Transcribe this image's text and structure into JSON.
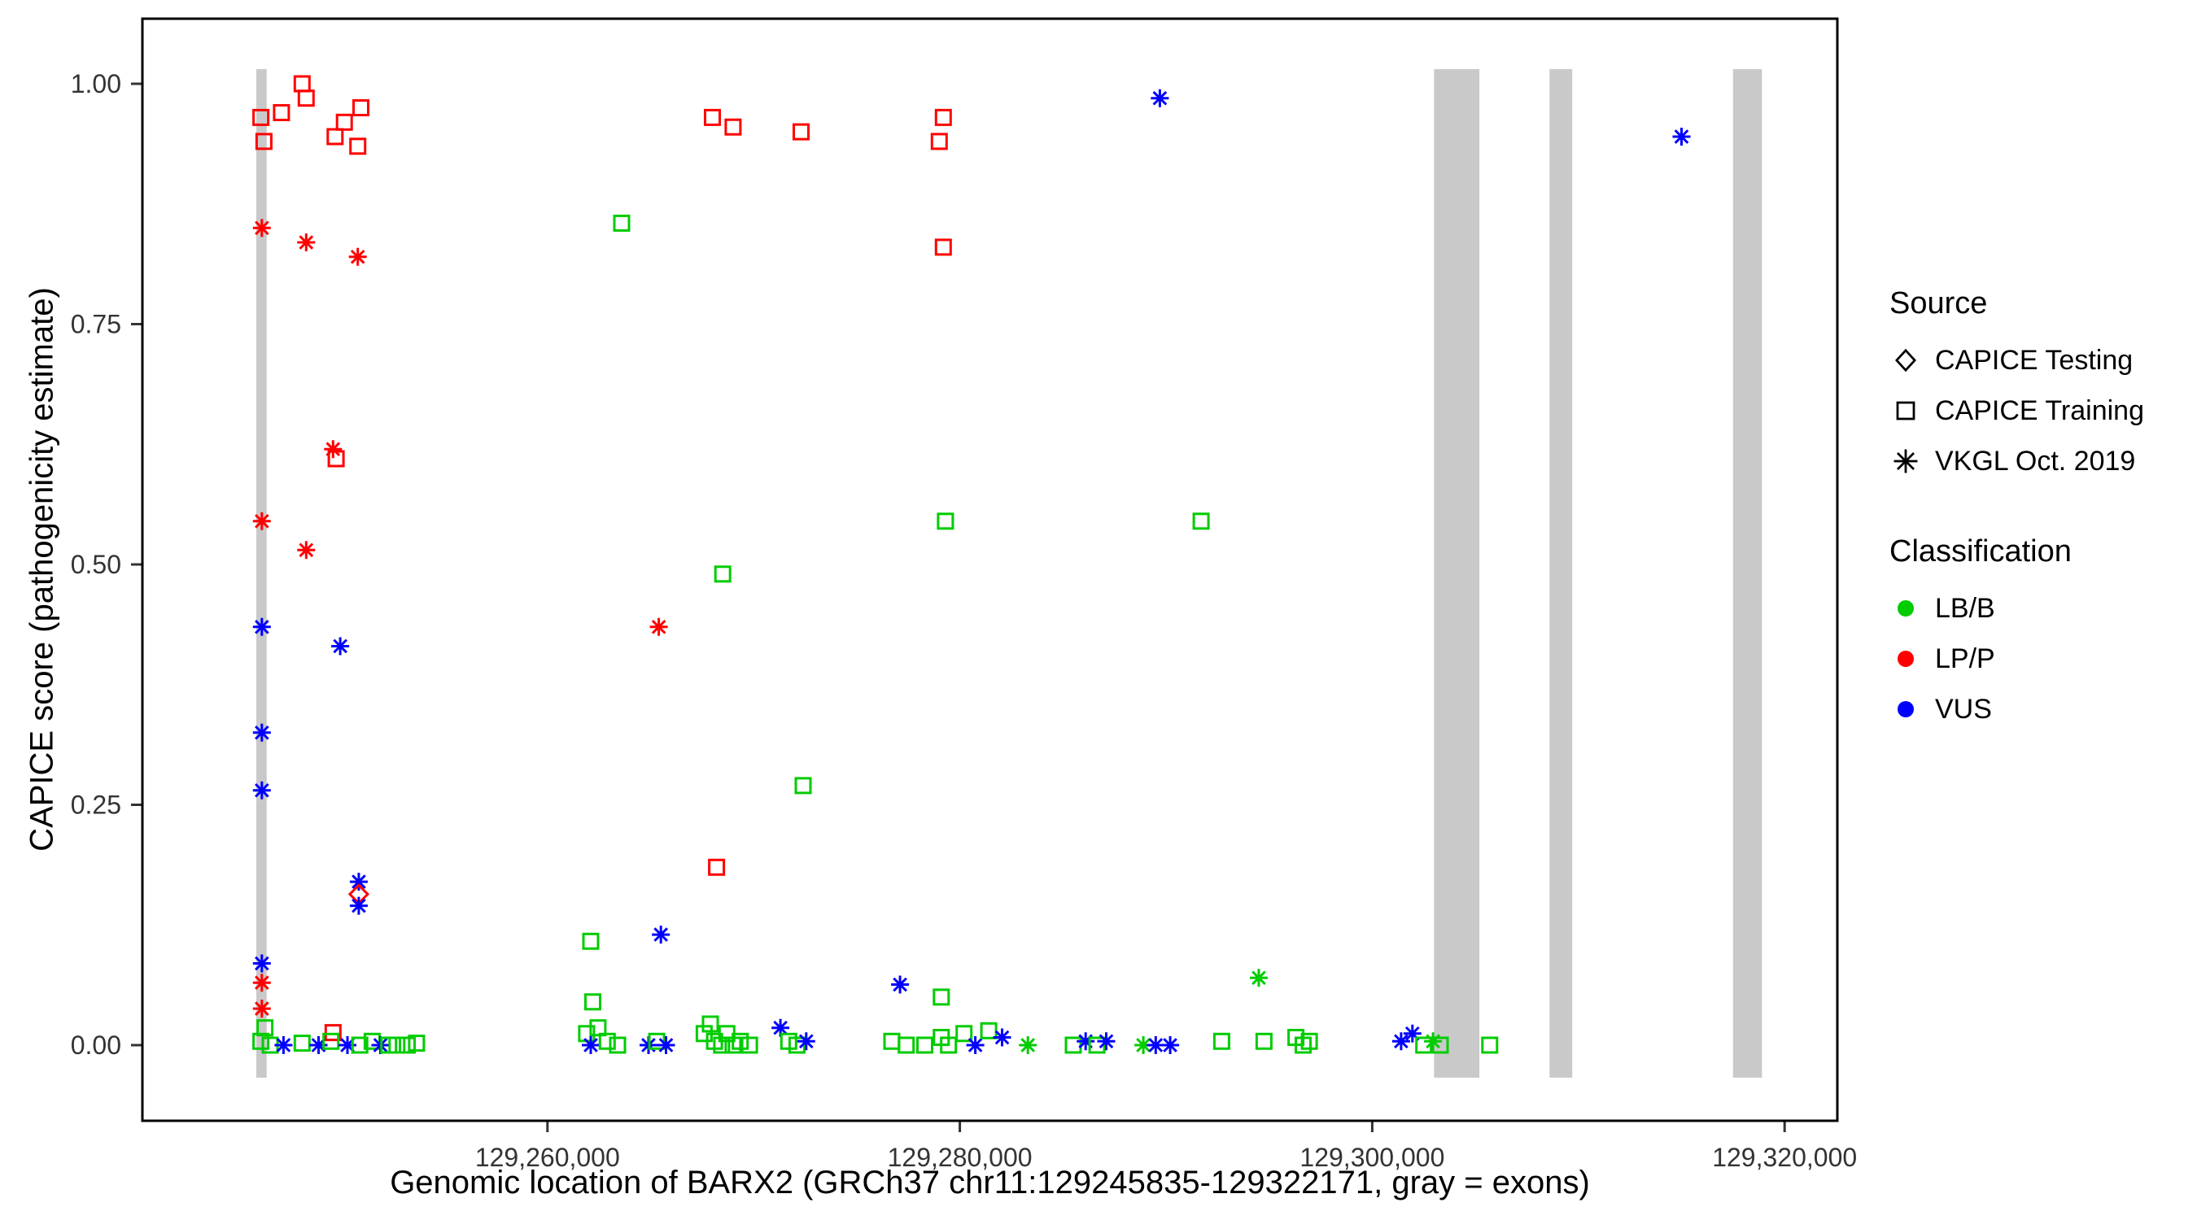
{
  "colors": {
    "LB": "#00cc00",
    "LP": "#ff0000",
    "VUS": "#0000ff",
    "exon": "#c9c9c9",
    "axis_text": "#333333",
    "panel_border": "#000000"
  },
  "chart_data": {
    "type": "scatter",
    "title": "",
    "xlabel": "Genomic location of BARX2 (GRCh37 chr11:129245835-129322171, gray = exons)",
    "ylabel": "CAPICE score (pathogenicity estimate)",
    "xlim": [
      129240355,
      129322557
    ],
    "ylim": [
      0,
      1
    ],
    "grid": "off",
    "legend_position": "right",
    "x_ticks": [
      {
        "value": 129260000,
        "label": "129,260,000"
      },
      {
        "value": 129280000,
        "label": "129,280,000"
      },
      {
        "value": 129300000,
        "label": "129,300,000"
      },
      {
        "value": 129320000,
        "label": "129,320,000"
      }
    ],
    "y_ticks": [
      {
        "value": 0.0,
        "label": "0.00"
      },
      {
        "value": 0.25,
        "label": "0.25"
      },
      {
        "value": 0.5,
        "label": "0.50"
      },
      {
        "value": 0.75,
        "label": "0.75"
      },
      {
        "value": 1.0,
        "label": "1.00"
      }
    ],
    "exons": [
      [
        129245880,
        129246380
      ],
      [
        129303000,
        129305200
      ],
      [
        129308600,
        129309700
      ],
      [
        129317500,
        129318900
      ]
    ],
    "legend": {
      "source": {
        "title": "Source",
        "items": [
          {
            "label": "CAPICE Testing",
            "marker": "diamond"
          },
          {
            "label": "CAPICE Training",
            "marker": "square"
          },
          {
            "label": "VKGL Oct. 2019",
            "marker": "asterisk"
          }
        ]
      },
      "classification": {
        "title": "Classification",
        "items": [
          {
            "label": "LB/B",
            "class": "LB"
          },
          {
            "label": "LP/P",
            "class": "LP"
          },
          {
            "label": "VUS",
            "class": "VUS"
          }
        ]
      }
    },
    "points": [
      [
        129246100,
        0.965,
        "training",
        "LP"
      ],
      [
        129246250,
        0.94,
        "training",
        "LP"
      ],
      [
        129247100,
        0.97,
        "training",
        "LP"
      ],
      [
        129248100,
        1.0,
        "training",
        "LP"
      ],
      [
        129248300,
        0.985,
        "training",
        "LP"
      ],
      [
        129249700,
        0.945,
        "training",
        "LP"
      ],
      [
        129250150,
        0.96,
        "training",
        "LP"
      ],
      [
        129250950,
        0.975,
        "training",
        "LP"
      ],
      [
        129250800,
        0.935,
        "training",
        "LP"
      ],
      [
        129246150,
        0.85,
        "vkgl",
        "LP"
      ],
      [
        129248300,
        0.835,
        "vkgl",
        "LP"
      ],
      [
        129250800,
        0.82,
        "vkgl",
        "LP"
      ],
      [
        129249600,
        0.62,
        "vkgl",
        "LP"
      ],
      [
        129249750,
        0.61,
        "training",
        "LP"
      ],
      [
        129246150,
        0.545,
        "vkgl",
        "LP"
      ],
      [
        129248300,
        0.515,
        "vkgl",
        "LP"
      ],
      [
        129246150,
        0.435,
        "vkgl",
        "VUS"
      ],
      [
        129249950,
        0.415,
        "vkgl",
        "VUS"
      ],
      [
        129246150,
        0.325,
        "vkgl",
        "VUS"
      ],
      [
        129246150,
        0.265,
        "vkgl",
        "VUS"
      ],
      [
        129250850,
        0.17,
        "vkgl",
        "VUS"
      ],
      [
        129250850,
        0.157,
        "testing",
        "LP"
      ],
      [
        129250850,
        0.145,
        "vkgl",
        "VUS"
      ],
      [
        129246150,
        0.085,
        "vkgl",
        "VUS"
      ],
      [
        129246150,
        0.065,
        "vkgl",
        "LP"
      ],
      [
        129246150,
        0.038,
        "vkgl",
        "LP"
      ],
      [
        129246300,
        0.018,
        "training",
        "LB"
      ],
      [
        129249600,
        0.013,
        "training",
        "LP"
      ],
      [
        129246100,
        0.004,
        "training",
        "LB"
      ],
      [
        129246550,
        0,
        "training",
        "LB"
      ],
      [
        129247200,
        0,
        "vkgl",
        "VUS"
      ],
      [
        129248100,
        0.002,
        "training",
        "LB"
      ],
      [
        129248900,
        0,
        "vkgl",
        "VUS"
      ],
      [
        129249500,
        0.004,
        "training",
        "LB"
      ],
      [
        129250300,
        0,
        "vkgl",
        "VUS"
      ],
      [
        129250900,
        0,
        "training",
        "LB"
      ],
      [
        129251500,
        0.004,
        "training",
        "LB"
      ],
      [
        129251900,
        0,
        "vkgl",
        "VUS"
      ],
      [
        129252300,
        0,
        "training",
        "LB"
      ],
      [
        129252700,
        0,
        "training",
        "LB"
      ],
      [
        129253200,
        0,
        "training",
        "LB"
      ],
      [
        129253650,
        0.002,
        "training",
        "LB"
      ],
      [
        129263600,
        0.855,
        "training",
        "LB"
      ],
      [
        129268000,
        0.965,
        "training",
        "LP"
      ],
      [
        129269000,
        0.955,
        "training",
        "LP"
      ],
      [
        129272300,
        0.95,
        "training",
        "LP"
      ],
      [
        129268500,
        0.49,
        "training",
        "LB"
      ],
      [
        129265400,
        0.435,
        "vkgl",
        "LP"
      ],
      [
        129272400,
        0.27,
        "training",
        "LB"
      ],
      [
        129268200,
        0.185,
        "training",
        "LP"
      ],
      [
        129262100,
        0.108,
        "training",
        "LB"
      ],
      [
        129265500,
        0.115,
        "vkgl",
        "VUS"
      ],
      [
        129262200,
        0.045,
        "training",
        "LB"
      ],
      [
        129261900,
        0.012,
        "training",
        "LB"
      ],
      [
        129262450,
        0.018,
        "training",
        "LB"
      ],
      [
        129262100,
        0,
        "vkgl",
        "VUS"
      ],
      [
        129262900,
        0.004,
        "training",
        "LB"
      ],
      [
        129263400,
        0,
        "training",
        "LB"
      ],
      [
        129264900,
        0,
        "vkgl",
        "VUS"
      ],
      [
        129265300,
        0.004,
        "training",
        "LB"
      ],
      [
        129265750,
        0,
        "vkgl",
        "VUS"
      ],
      [
        129267600,
        0.012,
        "training",
        "LB"
      ],
      [
        129267900,
        0.022,
        "training",
        "LB"
      ],
      [
        129268100,
        0.004,
        "training",
        "LB"
      ],
      [
        129268450,
        0,
        "training",
        "LB"
      ],
      [
        129268700,
        0.012,
        "training",
        "LB"
      ],
      [
        129269000,
        0,
        "training",
        "LB"
      ],
      [
        129269350,
        0.004,
        "training",
        "LB"
      ],
      [
        129269800,
        0,
        "training",
        "LB"
      ],
      [
        129271300,
        0.018,
        "vkgl",
        "VUS"
      ],
      [
        129271700,
        0.004,
        "training",
        "LB"
      ],
      [
        129272100,
        0,
        "training",
        "LB"
      ],
      [
        129272550,
        0.004,
        "vkgl",
        "VUS"
      ],
      [
        129279200,
        0.965,
        "training",
        "LP"
      ],
      [
        129279000,
        0.94,
        "training",
        "LP"
      ],
      [
        129279200,
        0.83,
        "training",
        "LP"
      ],
      [
        129279300,
        0.545,
        "training",
        "LB"
      ],
      [
        129277100,
        0.063,
        "vkgl",
        "VUS"
      ],
      [
        129279100,
        0.05,
        "training",
        "LB"
      ],
      [
        129276700,
        0.004,
        "training",
        "LB"
      ],
      [
        129277400,
        0,
        "training",
        "LB"
      ],
      [
        129278300,
        0,
        "training",
        "LB"
      ],
      [
        129279100,
        0.008,
        "training",
        "LB"
      ],
      [
        129279450,
        0,
        "training",
        "LB"
      ],
      [
        129280200,
        0.012,
        "training",
        "LB"
      ],
      [
        129280750,
        0,
        "vkgl",
        "VUS"
      ],
      [
        129281400,
        0.015,
        "training",
        "LB"
      ],
      [
        129282050,
        0.008,
        "vkgl",
        "VUS"
      ],
      [
        129283300,
        0,
        "vkgl",
        "LB"
      ],
      [
        129285500,
        0,
        "training",
        "LB"
      ],
      [
        129286100,
        0.004,
        "vkgl",
        "VUS"
      ],
      [
        129286650,
        0,
        "training",
        "LB"
      ],
      [
        129287100,
        0.004,
        "vkgl",
        "VUS"
      ],
      [
        129289700,
        0.985,
        "vkgl",
        "VUS"
      ],
      [
        129288900,
        0,
        "vkgl",
        "LB"
      ],
      [
        129289500,
        0,
        "vkgl",
        "VUS"
      ],
      [
        129290200,
        0,
        "vkgl",
        "VUS"
      ],
      [
        129291700,
        0.545,
        "training",
        "LB"
      ],
      [
        129292700,
        0.004,
        "training",
        "LB"
      ],
      [
        129294500,
        0.07,
        "vkgl",
        "LB"
      ],
      [
        129294750,
        0.004,
        "training",
        "LB"
      ],
      [
        129296300,
        0.008,
        "training",
        "LB"
      ],
      [
        129296650,
        0,
        "training",
        "LB"
      ],
      [
        129296950,
        0.004,
        "training",
        "LB"
      ],
      [
        129301400,
        0.004,
        "vkgl",
        "VUS"
      ],
      [
        129301950,
        0.012,
        "vkgl",
        "VUS"
      ],
      [
        129302500,
        0,
        "training",
        "LB"
      ],
      [
        129302950,
        0.004,
        "vkgl",
        "LB"
      ],
      [
        129303300,
        0,
        "training",
        "LB"
      ],
      [
        129305700,
        0,
        "training",
        "LB"
      ],
      [
        129315000,
        0.945,
        "vkgl",
        "VUS"
      ]
    ]
  }
}
